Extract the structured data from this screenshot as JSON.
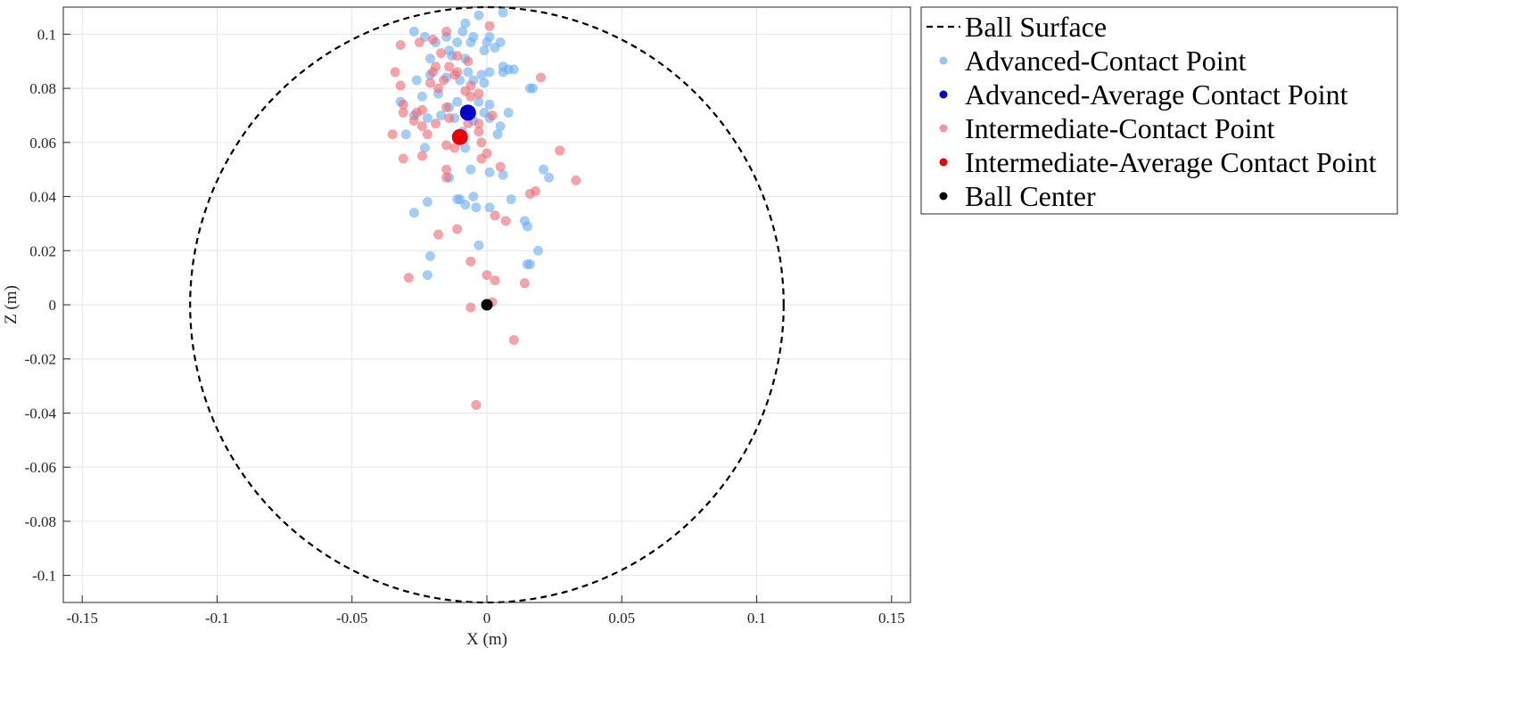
{
  "chart_data": {
    "type": "scatter",
    "xlabel": "X (m)",
    "ylabel": "Z (m)",
    "xlim": [
      -0.157,
      0.157
    ],
    "ylim": [
      -0.11,
      0.11
    ],
    "grid": true,
    "legend_placement": "outside-right-top",
    "x_ticks": [
      "-0.15",
      "-0.1",
      "-0.05",
      "0",
      "0.05",
      "0.1",
      "0.15"
    ],
    "y_ticks": [
      "-0.1",
      "-0.08",
      "-0.06",
      "-0.04",
      "-0.02",
      "0",
      "0.02",
      "0.04",
      "0.06",
      "0.08",
      "0.1"
    ],
    "ball_radius": 0.11,
    "series": [
      {
        "name": "Ball Surface",
        "kind": "circle",
        "color": "#000000",
        "center": [
          0,
          0
        ],
        "radius": 0.11
      },
      {
        "name": "Advanced-Contact Point",
        "kind": "points",
        "color": "#6aaef0",
        "points": [
          [
            -0.003,
            0.107
          ],
          [
            0.006,
            0.108
          ],
          [
            -0.008,
            0.104
          ],
          [
            -0.027,
            0.101
          ],
          [
            -0.023,
            0.099
          ],
          [
            -0.015,
            0.099
          ],
          [
            -0.009,
            0.101
          ],
          [
            -0.005,
            0.099
          ],
          [
            0.001,
            0.099
          ],
          [
            0.0,
            0.097
          ],
          [
            -0.019,
            0.097
          ],
          [
            -0.011,
            0.097
          ],
          [
            -0.006,
            0.097
          ],
          [
            0.005,
            0.097
          ],
          [
            -0.014,
            0.094
          ],
          [
            -0.021,
            0.091
          ],
          [
            -0.013,
            0.092
          ],
          [
            -0.008,
            0.091
          ],
          [
            0.003,
            0.095
          ],
          [
            -0.001,
            0.094
          ],
          [
            0.006,
            0.088
          ],
          [
            0.008,
            0.087
          ],
          [
            0.01,
            0.087
          ],
          [
            -0.007,
            0.086
          ],
          [
            -0.002,
            0.085
          ],
          [
            0.001,
            0.086
          ],
          [
            -0.021,
            0.085
          ],
          [
            -0.015,
            0.084
          ],
          [
            -0.005,
            0.083
          ],
          [
            -0.026,
            0.083
          ],
          [
            -0.01,
            0.083
          ],
          [
            -0.001,
            0.082
          ],
          [
            0.006,
            0.086
          ],
          [
            0.017,
            0.08
          ],
          [
            0.016,
            0.08
          ],
          [
            -0.018,
            0.078
          ],
          [
            -0.024,
            0.077
          ],
          [
            -0.032,
            0.075
          ],
          [
            -0.011,
            0.075
          ],
          [
            -0.003,
            0.075
          ],
          [
            0.001,
            0.074
          ],
          [
            -0.014,
            0.073
          ],
          [
            -0.008,
            0.072
          ],
          [
            -0.001,
            0.071
          ],
          [
            0.008,
            0.071
          ],
          [
            -0.027,
            0.07
          ],
          [
            -0.017,
            0.07
          ],
          [
            -0.012,
            0.069
          ],
          [
            0.001,
            0.069
          ],
          [
            -0.022,
            0.069
          ],
          [
            -0.005,
            0.068
          ],
          [
            0.005,
            0.066
          ],
          [
            -0.009,
            0.064
          ],
          [
            0.004,
            0.063
          ],
          [
            -0.03,
            0.063
          ],
          [
            -0.023,
            0.058
          ],
          [
            -0.008,
            0.058
          ],
          [
            0.021,
            0.05
          ],
          [
            0.023,
            0.047
          ],
          [
            -0.006,
            0.05
          ],
          [
            0.001,
            0.049
          ],
          [
            0.006,
            0.048
          ],
          [
            -0.014,
            0.047
          ],
          [
            0.009,
            0.039
          ],
          [
            -0.011,
            0.039
          ],
          [
            -0.01,
            0.039
          ],
          [
            -0.005,
            0.04
          ],
          [
            -0.022,
            0.038
          ],
          [
            0.001,
            0.036
          ],
          [
            -0.008,
            0.037
          ],
          [
            -0.004,
            0.036
          ],
          [
            0.014,
            0.031
          ],
          [
            0.015,
            0.029
          ],
          [
            -0.027,
            0.034
          ],
          [
            -0.003,
            0.022
          ],
          [
            0.019,
            0.02
          ],
          [
            -0.021,
            0.018
          ],
          [
            0.016,
            0.015
          ],
          [
            0.015,
            0.015
          ],
          [
            -0.022,
            0.011
          ]
        ]
      },
      {
        "name": "Advanced-Average Contact Point",
        "kind": "average",
        "color": "#0000cc",
        "points": [
          [
            -0.007,
            0.071
          ]
        ]
      },
      {
        "name": "Intermediate-Contact Point",
        "kind": "points",
        "color": "#ee6b75",
        "points": [
          [
            -0.032,
            0.096
          ],
          [
            -0.025,
            0.097
          ],
          [
            -0.02,
            0.098
          ],
          [
            -0.015,
            0.101
          ],
          [
            0.001,
            0.103
          ],
          [
            -0.017,
            0.093
          ],
          [
            -0.011,
            0.092
          ],
          [
            -0.007,
            0.09
          ],
          [
            -0.019,
            0.088
          ],
          [
            -0.014,
            0.088
          ],
          [
            -0.034,
            0.086
          ],
          [
            -0.02,
            0.086
          ],
          [
            -0.012,
            0.085
          ],
          [
            -0.011,
            0.086
          ],
          [
            0.02,
            0.084
          ],
          [
            -0.016,
            0.083
          ],
          [
            -0.021,
            0.082
          ],
          [
            -0.032,
            0.081
          ],
          [
            -0.018,
            0.08
          ],
          [
            -0.006,
            0.081
          ],
          [
            -0.008,
            0.079
          ],
          [
            -0.003,
            0.078
          ],
          [
            -0.006,
            0.077
          ],
          [
            -0.031,
            0.074
          ],
          [
            -0.015,
            0.073
          ],
          [
            -0.024,
            0.072
          ],
          [
            -0.026,
            0.071
          ],
          [
            -0.031,
            0.071
          ],
          [
            -0.027,
            0.068
          ],
          [
            -0.019,
            0.067
          ],
          [
            -0.014,
            0.069
          ],
          [
            -0.007,
            0.067
          ],
          [
            -0.003,
            0.067
          ],
          [
            -0.003,
            0.064
          ],
          [
            0.002,
            0.07
          ],
          [
            -0.035,
            0.063
          ],
          [
            -0.022,
            0.063
          ],
          [
            -0.024,
            0.066
          ],
          [
            -0.01,
            0.061
          ],
          [
            -0.002,
            0.06
          ],
          [
            -0.015,
            0.059
          ],
          [
            -0.012,
            0.058
          ],
          [
            0.027,
            0.057
          ],
          [
            -0.031,
            0.054
          ],
          [
            -0.002,
            0.054
          ],
          [
            0.0,
            0.056
          ],
          [
            -0.024,
            0.055
          ],
          [
            0.005,
            0.051
          ],
          [
            -0.015,
            0.05
          ],
          [
            -0.015,
            0.047
          ],
          [
            0.033,
            0.046
          ],
          [
            0.016,
            0.041
          ],
          [
            0.018,
            0.042
          ],
          [
            0.003,
            0.033
          ],
          [
            0.007,
            0.031
          ],
          [
            -0.011,
            0.028
          ],
          [
            -0.018,
            0.026
          ],
          [
            -0.006,
            0.016
          ],
          [
            0.0,
            0.011
          ],
          [
            0.003,
            0.009
          ],
          [
            -0.029,
            0.01
          ],
          [
            0.014,
            0.008
          ],
          [
            0.002,
            0.001
          ],
          [
            -0.006,
            -0.001
          ],
          [
            0.01,
            -0.013
          ],
          [
            -0.004,
            -0.037
          ]
        ]
      },
      {
        "name": "Intermediate-Average Contact Point",
        "kind": "average",
        "color": "#ee0000",
        "points": [
          [
            -0.01,
            0.062
          ]
        ]
      },
      {
        "name": "Ball Center",
        "kind": "center",
        "color": "#000000",
        "points": [
          [
            0,
            0
          ]
        ]
      }
    ]
  }
}
